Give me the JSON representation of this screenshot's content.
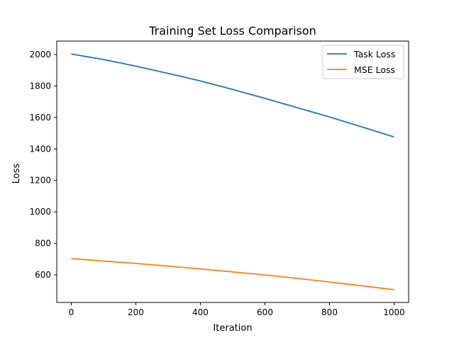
{
  "chart_data": {
    "type": "line",
    "title": "Training Set Loss Comparison",
    "xlabel": "Iteration",
    "ylabel": "Loss",
    "xlim": [
      -45,
      1045
    ],
    "ylim": [
      425,
      2085
    ],
    "xticks": [
      0,
      200,
      400,
      600,
      800,
      1000
    ],
    "yticks": [
      600,
      800,
      1000,
      1200,
      1400,
      1600,
      1800,
      2000
    ],
    "grid": false,
    "legend_position": "top-right",
    "series": [
      {
        "name": "Task Loss",
        "color": "#1f77b4",
        "x": [
          0,
          100,
          200,
          300,
          400,
          500,
          600,
          700,
          800,
          900,
          1000
        ],
        "y": [
          2003,
          1968,
          1926,
          1880,
          1832,
          1778,
          1721,
          1662,
          1603,
          1540,
          1476
        ]
      },
      {
        "name": "MSE Loss",
        "color": "#ff7f0e",
        "x": [
          0,
          100,
          200,
          300,
          400,
          500,
          600,
          700,
          800,
          900,
          1000
        ],
        "y": [
          703,
          688,
          673,
          656,
          638,
          619,
          600,
          578,
          555,
          531,
          506
        ]
      }
    ]
  }
}
